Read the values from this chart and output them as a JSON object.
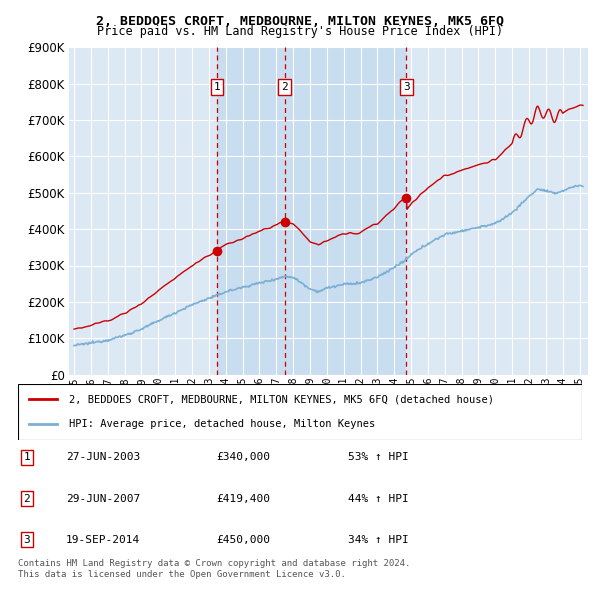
{
  "title": "2, BEDDOES CROFT, MEDBOURNE, MILTON KEYNES, MK5 6FQ",
  "subtitle": "Price paid vs. HM Land Registry's House Price Index (HPI)",
  "legend_line1": "2, BEDDOES CROFT, MEDBOURNE, MILTON KEYNES, MK5 6FQ (detached house)",
  "legend_line2": "HPI: Average price, detached house, Milton Keynes",
  "footnote1": "Contains HM Land Registry data © Crown copyright and database right 2024.",
  "footnote2": "This data is licensed under the Open Government Licence v3.0.",
  "transactions": [
    {
      "num": 1,
      "date": "27-JUN-2003",
      "price": 340000,
      "hpi_pct": "53%",
      "year": 2003.49
    },
    {
      "num": 2,
      "date": "29-JUN-2007",
      "price": 419400,
      "hpi_pct": "44%",
      "year": 2007.49
    },
    {
      "num": 3,
      "date": "19-SEP-2014",
      "price": 450000,
      "hpi_pct": "34%",
      "year": 2014.72
    }
  ],
  "ylim": [
    0,
    900000
  ],
  "xlim_start": 1994.7,
  "xlim_end": 2025.5,
  "red_color": "#cc0000",
  "blue_color": "#7bafd4",
  "background_color": "#dce9f5",
  "highlight_color": "#c8ddf0",
  "grid_color": "#ffffff",
  "vline_color": "#cc0000",
  "marker_size": 7
}
